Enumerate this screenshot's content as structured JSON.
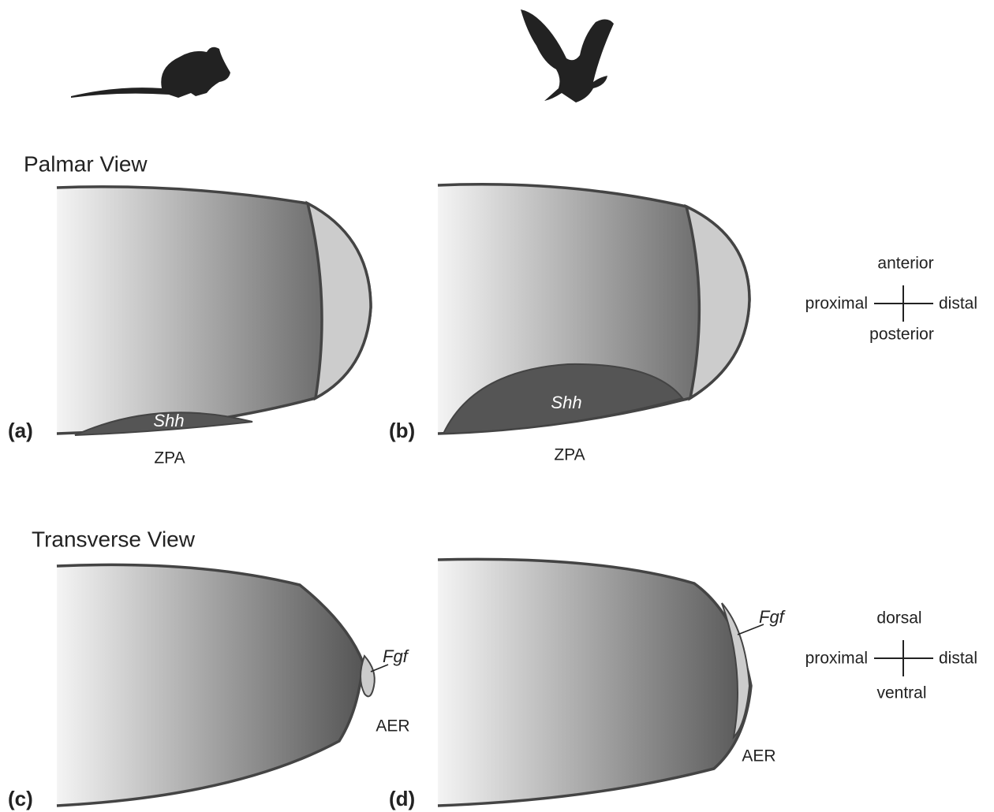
{
  "sections": [
    {
      "title": "Palmar View"
    },
    {
      "title": "Transverse View"
    }
  ],
  "panels": [
    {
      "label": "(a)",
      "gene": "Shh",
      "region": "ZPA"
    },
    {
      "label": "(b)",
      "gene": "Shh",
      "region": "ZPA"
    },
    {
      "label": "(c)",
      "gene": "Fgf",
      "region": "AER"
    },
    {
      "label": "(d)",
      "gene": "Fgf",
      "region": "AER"
    }
  ],
  "axes": [
    {
      "top": "anterior",
      "left": "proximal",
      "right": "distal",
      "bottom": "posterior"
    },
    {
      "top": "dorsal",
      "left": "proximal",
      "right": "distal",
      "bottom": "ventral"
    }
  ]
}
